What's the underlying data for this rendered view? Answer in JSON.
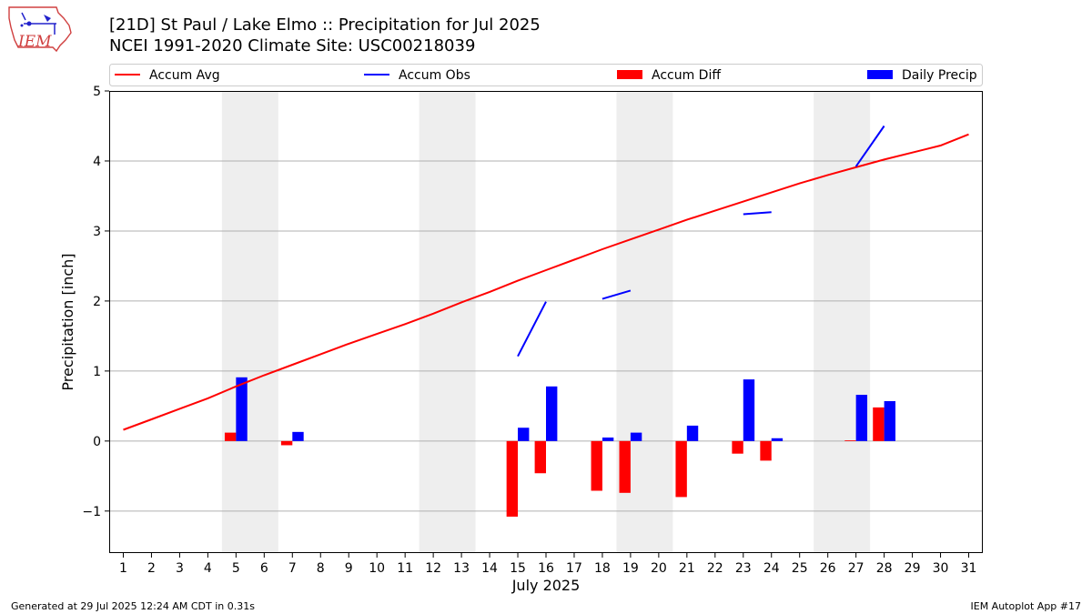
{
  "header": {
    "title_line1": "[21D] St Paul / Lake Elmo :: Precipitation for Jul 2025",
    "title_line2": "NCEI 1991-2020 Climate Site: USC00218039",
    "logo_text": "IEM"
  },
  "footer": {
    "left": "Generated at 29 Jul 2025 12:24 AM CDT in 0.31s",
    "right": "IEM Autoplot App #17"
  },
  "colors": {
    "avg": "#ff0000",
    "obs": "#0000ff",
    "diff": "#ff0000",
    "daily": "#0000ff",
    "weekend_shade": "#eeeeee",
    "grid": "#b0b0b0"
  },
  "chart_data": {
    "type": "bar",
    "xlabel": "July 2025",
    "ylabel": "Precipitation [inch]",
    "ylim": [
      -1.6,
      5
    ],
    "yticks": [
      -1,
      0,
      1,
      2,
      3,
      4,
      5
    ],
    "ytick_labels": [
      "−1",
      "0",
      "1",
      "2",
      "3",
      "4",
      "5"
    ],
    "xlim": [
      0.5,
      31.5
    ],
    "x": [
      1,
      2,
      3,
      4,
      5,
      6,
      7,
      8,
      9,
      10,
      11,
      12,
      13,
      14,
      15,
      16,
      17,
      18,
      19,
      20,
      21,
      22,
      23,
      24,
      25,
      26,
      27,
      28,
      29,
      30,
      31
    ],
    "grid": "horizontal",
    "weekend_spans": [
      [
        4.5,
        6.5
      ],
      [
        11.5,
        13.5
      ],
      [
        18.5,
        20.5
      ],
      [
        25.5,
        27.5
      ]
    ],
    "legend": {
      "placement": "top",
      "entries": [
        {
          "label": "Accum Avg",
          "kind": "line",
          "color": "#ff0000"
        },
        {
          "label": "Accum Obs",
          "kind": "line",
          "color": "#0000ff"
        },
        {
          "label": "Accum Diff",
          "kind": "patch",
          "color": "#ff0000"
        },
        {
          "label": "Daily Precip",
          "kind": "patch",
          "color": "#0000ff"
        }
      ]
    },
    "series": [
      {
        "name": "Accum Avg",
        "kind": "line",
        "color": "#ff0000",
        "x": [
          1,
          2,
          3,
          4,
          5,
          6,
          7,
          8,
          9,
          10,
          11,
          12,
          13,
          14,
          15,
          16,
          17,
          18,
          19,
          20,
          21,
          22,
          23,
          24,
          25,
          26,
          27,
          28,
          29,
          30,
          31
        ],
        "values": [
          0.16,
          0.31,
          0.46,
          0.61,
          0.78,
          0.94,
          1.09,
          1.24,
          1.39,
          1.53,
          1.67,
          1.82,
          1.98,
          2.13,
          2.29,
          2.44,
          2.59,
          2.74,
          2.88,
          3.02,
          3.16,
          3.29,
          3.42,
          3.55,
          3.68,
          3.8,
          3.91,
          4.02,
          4.12,
          4.22,
          4.38
        ]
      },
      {
        "name": "Accum Obs",
        "kind": "line-segments",
        "color": "#0000ff",
        "segments": [
          [
            [
              15,
              1.21
            ],
            [
              16,
              1.99
            ]
          ],
          [
            [
              18,
              2.03
            ],
            [
              19,
              2.15
            ]
          ],
          [
            [
              23,
              3.24
            ],
            [
              24,
              3.27
            ]
          ],
          [
            [
              27,
              3.92
            ],
            [
              28,
              4.5
            ]
          ]
        ]
      },
      {
        "name": "Accum Diff",
        "kind": "bar",
        "offset": -0.2,
        "color": "#ff0000",
        "x": [
          5,
          7,
          15,
          16,
          18,
          19,
          21,
          23,
          24,
          27,
          28
        ],
        "values": [
          0.12,
          -0.06,
          -1.08,
          -0.46,
          -0.71,
          -0.74,
          -0.8,
          -0.18,
          -0.28,
          0.01,
          0.48
        ]
      },
      {
        "name": "Daily Precip",
        "kind": "bar",
        "offset": 0.2,
        "color": "#0000ff",
        "x": [
          5,
          7,
          15,
          16,
          18,
          19,
          21,
          23,
          24,
          27,
          28
        ],
        "values": [
          0.91,
          0.13,
          0.19,
          0.78,
          0.05,
          0.12,
          0.22,
          0.88,
          0.04,
          0.66,
          0.57
        ]
      }
    ]
  }
}
